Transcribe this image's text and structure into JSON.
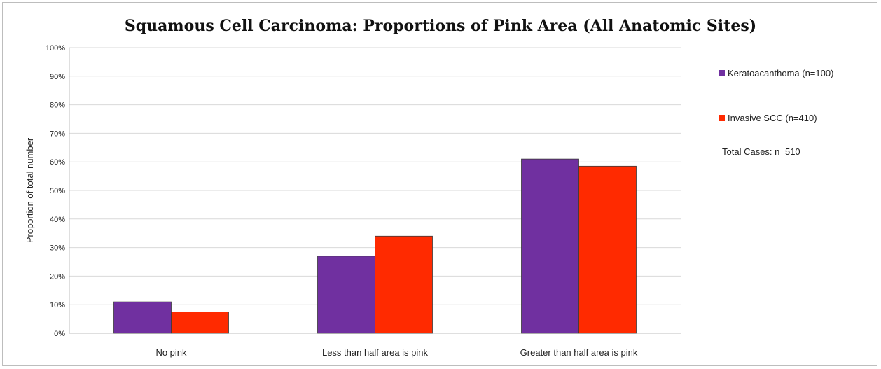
{
  "chart_data": {
    "type": "bar",
    "title": "Squamous Cell Carcinoma: Proportions of Pink Area (All Anatomic Sites)",
    "xlabel": "",
    "ylabel": "Proportion of total number",
    "categories": [
      "No pink",
      "Less than half area is pink",
      "Greater than half area is pink"
    ],
    "series": [
      {
        "name": "Keratoacanthoma (n=100)",
        "color": "#7030a0",
        "values": [
          0.11,
          0.27,
          0.61
        ]
      },
      {
        "name": "Invasive SCC (n=410)",
        "color": "#ff2a00",
        "values": [
          0.075,
          0.34,
          0.585
        ]
      }
    ],
    "ylim": [
      0,
      1
    ],
    "yticks": [
      "0%",
      "10%",
      "20%",
      "30%",
      "40%",
      "50%",
      "60%",
      "70%",
      "80%",
      "90%",
      "100%"
    ],
    "grid": true,
    "legend_position": "right",
    "annotation": "Total Cases: n=510"
  }
}
